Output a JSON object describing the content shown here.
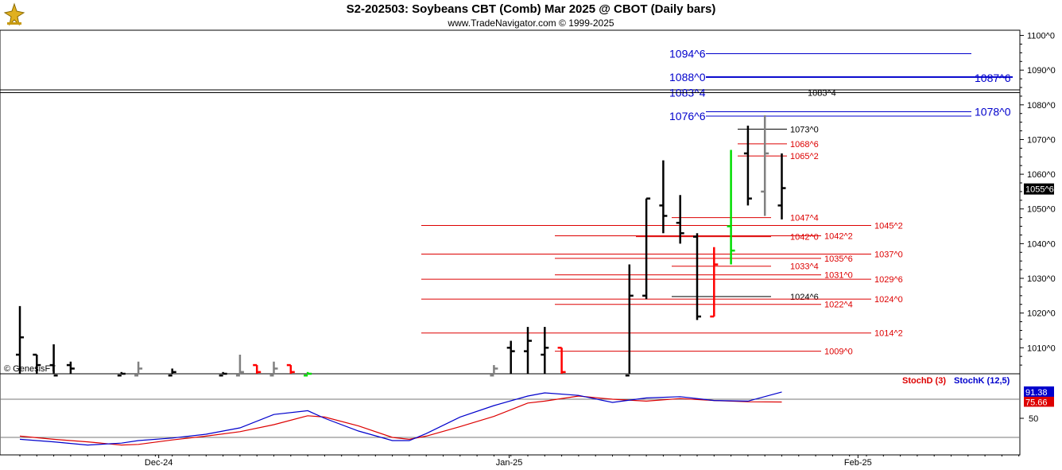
{
  "header": {
    "title": "S2-202503:  Soybeans CBT (Comb) Mar 2025 @ CBOT  (Daily bars)",
    "subtitle": "www.TradeNavigator.com © 1999-2025"
  },
  "watermark": "© GenesisFT",
  "colors": {
    "up_bar": "#000000",
    "down_bar": "#ff0000",
    "neutral_bar": "#808080",
    "green_bar": "#00dd00",
    "level_red": "#dd0000",
    "level_blue": "#0000cc",
    "stochD": "#dd0000",
    "stochK": "#0000cc"
  },
  "chart_data": [
    {
      "type": "ohlc",
      "title": "S2-202503:  Soybeans CBT (Comb) Mar 2025 @ CBOT  (Daily bars)",
      "y_axis": {
        "ticks": [
          "1010^0",
          "1020^0",
          "1030^0",
          "1040^0",
          "1050^0",
          "1060^0",
          "1070^0",
          "1080^0",
          "1090^0",
          "1100^0"
        ],
        "tick_values": [
          1010,
          1020,
          1030,
          1040,
          1050,
          1060,
          1070,
          1080,
          1090,
          1100
        ],
        "range": [
          1002.5,
          1101.5
        ],
        "last_price_label": "1055^6",
        "last_price": 1055.75
      },
      "x_axis": {
        "labels": [
          "Dec-24",
          "Jan-25",
          "Feb-25"
        ]
      },
      "bars": [
        {
          "i": 0,
          "o": 1008,
          "h": 1022,
          "l": 1002,
          "c": 1013,
          "color": "up_bar"
        },
        {
          "i": 1,
          "o": 1008,
          "h": 1008,
          "l": 1002,
          "c": 1005,
          "color": "up_bar"
        },
        {
          "i": 2,
          "o": 1005,
          "h": 1011,
          "l": 1002,
          "c": 1002,
          "color": "up_bar"
        },
        {
          "i": 3,
          "o": 1005,
          "h": 1006,
          "l": 1002,
          "c": 1004,
          "color": "up_bar"
        },
        {
          "i": 6,
          "o": 1002,
          "h": 1003,
          "l": 1002,
          "c": 1002.5,
          "color": "up_bar"
        },
        {
          "i": 7,
          "o": 1002,
          "h": 1006,
          "l": 1002,
          "c": 1004,
          "color": "neutral_bar"
        },
        {
          "i": 9,
          "o": 1002,
          "h": 1004,
          "l": 1002,
          "c": 1003,
          "color": "up_bar"
        },
        {
          "i": 12,
          "o": 1002,
          "h": 1003,
          "l": 1002,
          "c": 1002.5,
          "color": "up_bar"
        },
        {
          "i": 13,
          "o": 1002,
          "h": 1008,
          "l": 1002,
          "c": 1003,
          "color": "neutral_bar"
        },
        {
          "i": 14,
          "o": 1005,
          "h": 1005,
          "l": 1002,
          "c": 1003,
          "color": "down_bar"
        },
        {
          "i": 15,
          "o": 1002,
          "h": 1006,
          "l": 1002,
          "c": 1004,
          "color": "neutral_bar"
        },
        {
          "i": 16,
          "o": 1005,
          "h": 1005,
          "l": 1002,
          "c": 1003,
          "color": "down_bar"
        },
        {
          "i": 17,
          "o": 1002,
          "h": 1003,
          "l": 1002,
          "c": 1002.5,
          "color": "green_bar"
        },
        {
          "i": 28,
          "o": 1002,
          "h": 1005,
          "l": 1002,
          "c": 1004,
          "color": "neutral_bar"
        },
        {
          "i": 29,
          "o": 1010,
          "h": 1012,
          "l": 1002,
          "c": 1009,
          "color": "up_bar"
        },
        {
          "i": 30,
          "o": 1009,
          "h": 1016,
          "l": 1002,
          "c": 1012,
          "color": "up_bar"
        },
        {
          "i": 31,
          "o": 1008,
          "h": 1016,
          "l": 1002,
          "c": 1010,
          "color": "up_bar"
        },
        {
          "i": 32,
          "o": 1010,
          "h": 1010,
          "l": 1002,
          "c": 1003,
          "color": "down_bar"
        },
        {
          "i": 36,
          "o": 1002,
          "h": 1034,
          "l": 1002,
          "c": 1025,
          "color": "up_bar"
        },
        {
          "i": 37,
          "o": 1025,
          "h": 1053,
          "l": 1024,
          "c": 1053,
          "color": "up_bar"
        },
        {
          "i": 38,
          "o": 1051,
          "h": 1064,
          "l": 1043,
          "c": 1048,
          "color": "up_bar"
        },
        {
          "i": 39,
          "o": 1046,
          "h": 1054,
          "l": 1040,
          "c": 1043,
          "color": "up_bar"
        },
        {
          "i": 40,
          "o": 1042,
          "h": 1043,
          "l": 1018,
          "c": 1019,
          "color": "up_bar"
        },
        {
          "i": 41,
          "o": 1019,
          "h": 1039,
          "l": 1019,
          "c": 1034,
          "color": "down_bar"
        },
        {
          "i": 42,
          "o": 1045,
          "h": 1067,
          "l": 1034,
          "c": 1038,
          "color": "green_bar"
        },
        {
          "i": 43,
          "o": 1066,
          "h": 1074,
          "l": 1051,
          "c": 1053,
          "color": "up_bar"
        },
        {
          "i": 44,
          "o": 1055,
          "h": 1077,
          "l": 1048,
          "c": 1066,
          "color": "neutral_bar"
        },
        {
          "i": 45,
          "o": 1051,
          "h": 1066,
          "l": 1047,
          "c": 1056,
          "color": "up_bar"
        }
      ],
      "levels": [
        {
          "label": "1094^6",
          "value": 1094.75,
          "color": "level_blue",
          "side": "left"
        },
        {
          "label": "1088^0",
          "value": 1088.0,
          "color": "level_blue",
          "side": "left"
        },
        {
          "label": "1087^6",
          "value": 1087.75,
          "color": "level_blue",
          "side": "right"
        },
        {
          "label": "1083^4",
          "value": 1083.5,
          "color": "level_blue",
          "side": "left"
        },
        {
          "label": "1083^4",
          "value": 1083.5,
          "color": "up_bar",
          "side": "mid"
        },
        {
          "label": "1078^0",
          "value": 1078.0,
          "color": "level_blue",
          "side": "right"
        },
        {
          "label": "1076^6",
          "value": 1076.75,
          "color": "level_blue",
          "side": "left"
        },
        {
          "label": "1073^0",
          "value": 1073.0,
          "color": "up_bar",
          "side": "near"
        },
        {
          "label": "1068^6",
          "value": 1068.75,
          "color": "level_red",
          "side": "near"
        },
        {
          "label": "1065^2",
          "value": 1065.25,
          "color": "level_red",
          "side": "near"
        },
        {
          "label": "1047^4",
          "value": 1047.5,
          "color": "level_red",
          "side": "near"
        },
        {
          "label": "1045^2",
          "value": 1045.25,
          "color": "level_red",
          "side": "far"
        },
        {
          "label": "1042^0",
          "value": 1042.0,
          "color": "level_red",
          "side": "near"
        },
        {
          "label": "1042^2",
          "value": 1042.25,
          "color": "level_red",
          "side": "mid2"
        },
        {
          "label": "1037^0",
          "value": 1037.0,
          "color": "level_red",
          "side": "far"
        },
        {
          "label": "1035^6",
          "value": 1035.75,
          "color": "level_red",
          "side": "mid2"
        },
        {
          "label": "1033^4",
          "value": 1033.5,
          "color": "level_red",
          "side": "near"
        },
        {
          "label": "1031^0",
          "value": 1031.0,
          "color": "level_red",
          "side": "mid2"
        },
        {
          "label": "1029^6",
          "value": 1029.75,
          "color": "level_red",
          "side": "far"
        },
        {
          "label": "1024^6",
          "value": 1024.75,
          "color": "up_bar",
          "side": "near"
        },
        {
          "label": "1024^0",
          "value": 1024.0,
          "color": "level_red",
          "side": "far"
        },
        {
          "label": "1022^4",
          "value": 1022.5,
          "color": "level_red",
          "side": "mid2"
        },
        {
          "label": "1014^2",
          "value": 1014.25,
          "color": "level_red",
          "side": "far"
        },
        {
          "label": "1009^0",
          "value": 1009.0,
          "color": "level_red",
          "side": "mid2"
        }
      ]
    },
    {
      "type": "line",
      "title": "",
      "y_axis": {
        "ticks": [
          "50"
        ],
        "tick_values": [
          50
        ],
        "range": [
          0,
          100
        ]
      },
      "reference_lines": [
        80,
        20
      ],
      "series": [
        {
          "name": "StochD (3)",
          "color": "stochD",
          "last_label": "75.66",
          "values": [
            {
              "i": 0,
              "v": 22
            },
            {
              "i": 2,
              "v": 17
            },
            {
              "i": 4,
              "v": 13
            },
            {
              "i": 6,
              "v": 8
            },
            {
              "i": 7,
              "v": 9
            },
            {
              "i": 9,
              "v": 16
            },
            {
              "i": 11,
              "v": 22
            },
            {
              "i": 13,
              "v": 29
            },
            {
              "i": 15,
              "v": 40
            },
            {
              "i": 17,
              "v": 54
            },
            {
              "i": 18,
              "v": 52
            },
            {
              "i": 20,
              "v": 38
            },
            {
              "i": 22,
              "v": 20
            },
            {
              "i": 23,
              "v": 17
            },
            {
              "i": 24,
              "v": 22
            },
            {
              "i": 26,
              "v": 37
            },
            {
              "i": 28,
              "v": 53
            },
            {
              "i": 30,
              "v": 74
            },
            {
              "i": 31,
              "v": 77
            },
            {
              "i": 33,
              "v": 85
            },
            {
              "i": 35,
              "v": 80
            },
            {
              "i": 37,
              "v": 77
            },
            {
              "i": 39,
              "v": 81
            },
            {
              "i": 41,
              "v": 78
            },
            {
              "i": 43,
              "v": 76
            },
            {
              "i": 45,
              "v": 75.66
            }
          ]
        },
        {
          "name": "StochK (12,5)",
          "color": "stochK",
          "last_label": "91.38",
          "values": [
            {
              "i": 0,
              "v": 17
            },
            {
              "i": 2,
              "v": 13
            },
            {
              "i": 4,
              "v": 8
            },
            {
              "i": 6,
              "v": 11
            },
            {
              "i": 7,
              "v": 15
            },
            {
              "i": 9,
              "v": 19
            },
            {
              "i": 11,
              "v": 25
            },
            {
              "i": 13,
              "v": 35
            },
            {
              "i": 15,
              "v": 56
            },
            {
              "i": 17,
              "v": 62
            },
            {
              "i": 18,
              "v": 50
            },
            {
              "i": 20,
              "v": 30
            },
            {
              "i": 22,
              "v": 15
            },
            {
              "i": 23,
              "v": 15
            },
            {
              "i": 24,
              "v": 26
            },
            {
              "i": 26,
              "v": 52
            },
            {
              "i": 28,
              "v": 70
            },
            {
              "i": 30,
              "v": 85
            },
            {
              "i": 31,
              "v": 90
            },
            {
              "i": 33,
              "v": 86
            },
            {
              "i": 35,
              "v": 75
            },
            {
              "i": 37,
              "v": 82
            },
            {
              "i": 39,
              "v": 84
            },
            {
              "i": 41,
              "v": 78
            },
            {
              "i": 43,
              "v": 77
            },
            {
              "i": 45,
              "v": 91.38
            }
          ]
        }
      ]
    }
  ]
}
